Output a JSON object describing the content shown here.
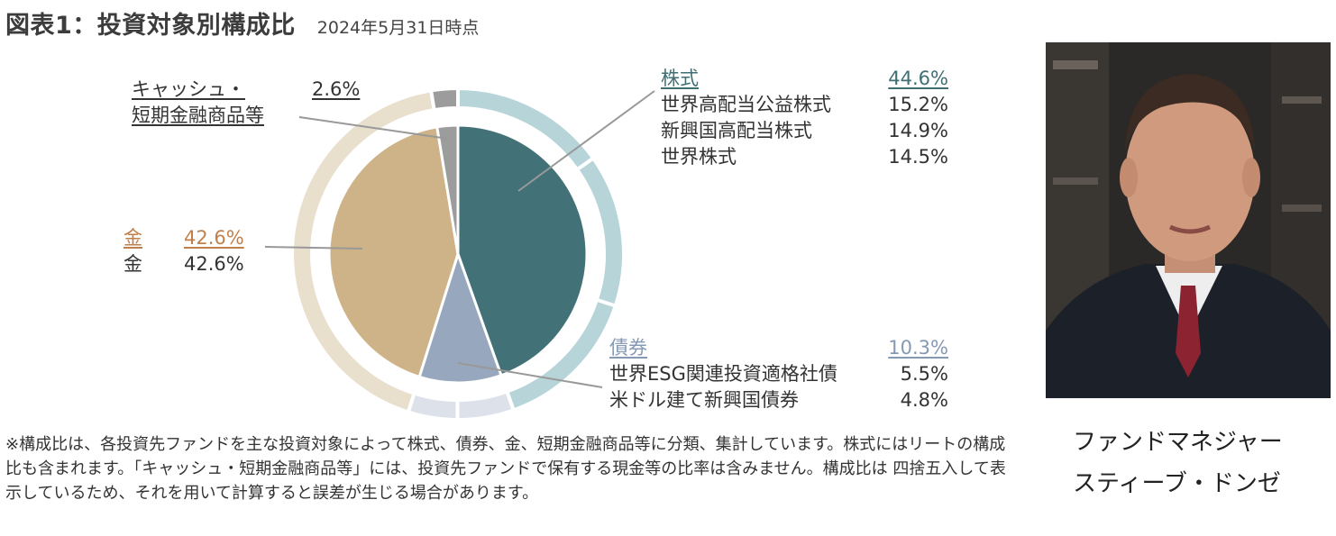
{
  "header": {
    "title": "図表1：投資対象別構成比",
    "date": "2024年5月31日時点"
  },
  "colors": {
    "stock": "#427277",
    "stock_light": "#b7d4d9",
    "bond": "#97a7bd",
    "bond_light": "#dde2ea",
    "gold": "#cdb387",
    "gold_light": "#e8dfcd",
    "cash": "#9c9c9c",
    "stock_text": "#3f6f73",
    "bond_text": "#8599b4",
    "gold_text": "#c0804b",
    "leader": "#999999"
  },
  "chart_data": {
    "type": "pie",
    "unit": "%",
    "inner": [
      {
        "category": "株式",
        "value": 44.6
      },
      {
        "category": "債券",
        "value": 10.3
      },
      {
        "category": "金",
        "value": 42.6
      },
      {
        "category": "キャッシュ・短期金融商品等",
        "value": 2.6
      }
    ],
    "outer": [
      {
        "category": "株式",
        "name": "世界高配当公益株式",
        "value": 15.2
      },
      {
        "category": "株式",
        "name": "新興国高配当株式",
        "value": 14.9
      },
      {
        "category": "株式",
        "name": "世界株式",
        "value": 14.5
      },
      {
        "category": "債券",
        "name": "世界ESG関連投資適格社債",
        "value": 5.5
      },
      {
        "category": "債券",
        "name": "米ドル建て新興国債券",
        "value": 4.8
      },
      {
        "category": "金",
        "name": "金",
        "value": 42.6
      },
      {
        "category": "キャッシュ・短期金融商品等",
        "name": "キャッシュ・短期金融商品等",
        "value": 2.6
      }
    ]
  },
  "labels": {
    "cash": {
      "line1": "キャッシュ・",
      "line2": "短期金融商品等",
      "value": "2.6%"
    },
    "stock": {
      "label": "株式",
      "value": "44.6%",
      "items": [
        {
          "name": "世界高配当公益株式",
          "value": "15.2%"
        },
        {
          "name": "新興国高配当株式",
          "value": "14.9%"
        },
        {
          "name": "世界株式",
          "value": "14.5%"
        }
      ]
    },
    "gold": {
      "label": "金",
      "value": "42.6%",
      "item_name": "金",
      "item_value": "42.6%"
    },
    "bond": {
      "label": "債券",
      "value": "10.3%",
      "items": [
        {
          "name": "世界ESG関連投資適格社債",
          "value": "5.5%"
        },
        {
          "name": "米ドル建て新興国債券",
          "value": "4.8%"
        }
      ]
    }
  },
  "footnote": "※構成比は、各投資先ファンドを主な投資対象によって株式、債券、金、短期金融商品等に分類、集計しています。株式にはリートの構成比も含まれます。「キャッシュ・短期金融商品等」には、投資先ファンドで保有する現金等の比率は含みません。構成比は 四捨五入して表示しているため、それを用いて計算すると誤差が生じる場合があります。",
  "caption": {
    "line1": "ファンドマネジャー",
    "line2": "スティーブ・ドンゼ"
  }
}
